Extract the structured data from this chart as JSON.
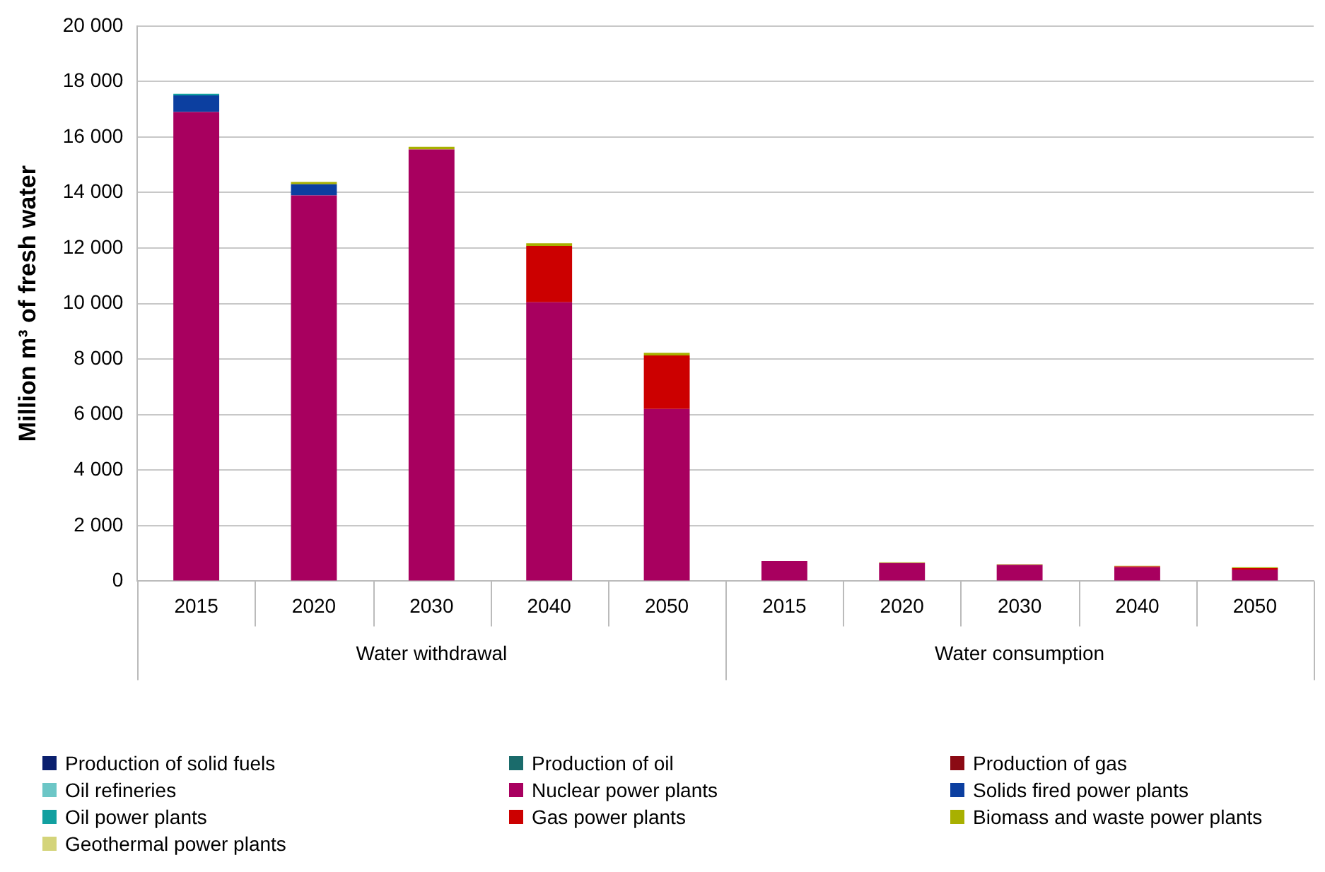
{
  "chart_data": {
    "type": "bar",
    "stacked": true,
    "ylabel": "Million m³ of fresh water",
    "legend": "bottom",
    "grid": "y",
    "categories": [
      "2015",
      "2020",
      "2030",
      "2040",
      "2050",
      "2015",
      "2020",
      "2030",
      "2040",
      "2050"
    ],
    "annotations": [
      "Water withdrawal",
      "Water consumption"
    ],
    "ylim": [
      0,
      20000
    ],
    "yticks": [
      {
        "value": 0,
        "label": "0"
      },
      {
        "value": 2000,
        "label": "2 000"
      },
      {
        "value": 4000,
        "label": "4 000"
      },
      {
        "value": 6000,
        "label": "6 000"
      },
      {
        "value": 8000,
        "label": "8 000"
      },
      {
        "value": 10000,
        "label": "10 000"
      },
      {
        "value": 12000,
        "label": "12 000"
      },
      {
        "value": 14000,
        "label": "14 000"
      },
      {
        "value": 16000,
        "label": "16 000"
      },
      {
        "value": 18000,
        "label": "18 000"
      },
      {
        "value": 20000,
        "label": "20 000"
      }
    ],
    "series": [
      {
        "name": "Production of solid fuels",
        "color": "#0a1f6e",
        "values": [
          0,
          0,
          0,
          0,
          0,
          0,
          0,
          0,
          0,
          0
        ]
      },
      {
        "name": "Production of oil",
        "color": "#1a6b6b",
        "values": [
          0,
          0,
          0,
          0,
          0,
          0,
          0,
          0,
          0,
          0
        ]
      },
      {
        "name": "Production of gas",
        "color": "#8b0a14",
        "values": [
          0,
          0,
          0,
          0,
          0,
          0,
          0,
          0,
          0,
          0
        ]
      },
      {
        "name": "Oil refineries",
        "color": "#6cc6c6",
        "values": [
          0,
          0,
          0,
          0,
          0,
          0,
          0,
          0,
          0,
          0
        ]
      },
      {
        "name": "Nuclear power plants",
        "color": "#a8005f",
        "values": [
          16900,
          13900,
          15550,
          10050,
          6200,
          720,
          650,
          590,
          500,
          420
        ]
      },
      {
        "name": "Solids fired power plants",
        "color": "#0c3fa0",
        "values": [
          600,
          400,
          0,
          0,
          0,
          0,
          0,
          0,
          0,
          0
        ]
      },
      {
        "name": "Oil power plants",
        "color": "#12a0a0",
        "values": [
          60,
          0,
          0,
          0,
          0,
          0,
          0,
          0,
          0,
          0
        ]
      },
      {
        "name": "Gas power plants",
        "color": "#cc0000",
        "values": [
          0,
          0,
          0,
          2030,
          1930,
          0,
          0,
          0,
          30,
          50
        ]
      },
      {
        "name": "Biomass and waste power plants",
        "color": "#a8b000",
        "values": [
          0,
          80,
          100,
          90,
          100,
          0,
          30,
          20,
          20,
          30
        ]
      },
      {
        "name": "Geothermal power plants",
        "color": "#d4d47a",
        "values": [
          0,
          0,
          0,
          0,
          0,
          0,
          0,
          0,
          0,
          0
        ]
      }
    ]
  }
}
